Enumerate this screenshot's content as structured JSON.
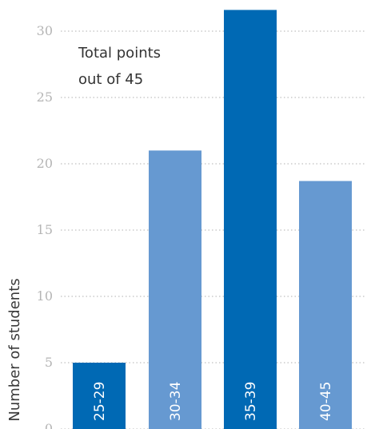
{
  "chart_data": {
    "type": "bar",
    "annotation_lines": [
      "Total points",
      "out of 45"
    ],
    "xlabel": "",
    "ylabel": "Number of students",
    "ylim": [
      0,
      32
    ],
    "yticks": [
      "0",
      "5",
      "10",
      "15",
      "20",
      "25",
      "30"
    ],
    "grid": true,
    "categories": [
      "25-29",
      "30-34",
      "35-39",
      "40-45"
    ],
    "values": [
      5,
      21,
      31.6,
      18.7
    ],
    "colors": [
      "#0069b4",
      "#6699d1",
      "#0069b4",
      "#6699d1"
    ]
  }
}
